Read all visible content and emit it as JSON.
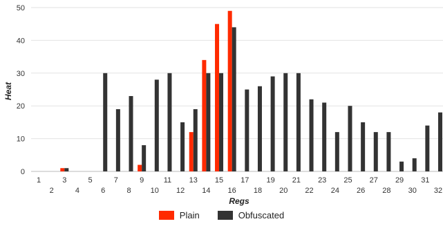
{
  "chart_data": {
    "type": "bar",
    "xlabel": "Regs",
    "ylabel": "Heat",
    "ylim": [
      0,
      50
    ],
    "yticks": [
      0,
      10,
      20,
      30,
      40,
      50
    ],
    "grid": true,
    "legend_position": "bottom",
    "categories": [
      "1",
      "2",
      "3",
      "4",
      "5",
      "6",
      "7",
      "8",
      "9",
      "10",
      "11",
      "12",
      "13",
      "14",
      "15",
      "16",
      "17",
      "18",
      "19",
      "20",
      "21",
      "22",
      "23",
      "24",
      "25",
      "26",
      "27",
      "28",
      "29",
      "30",
      "31",
      "32"
    ],
    "series": [
      {
        "name": "Plain",
        "color": "#ff2a00",
        "values": [
          0,
          0,
          1,
          0,
          0,
          0,
          0,
          0,
          2,
          0,
          0,
          0,
          12,
          34,
          45,
          49,
          0,
          0,
          0,
          0,
          0,
          0,
          0,
          0,
          0,
          0,
          0,
          0,
          0,
          0,
          0,
          0
        ]
      },
      {
        "name": "Obfuscated",
        "color": "#333333",
        "values": [
          0,
          0,
          1,
          0,
          0,
          30,
          19,
          23,
          8,
          28,
          30,
          15,
          19,
          30,
          30,
          44,
          25,
          26,
          29,
          30,
          30,
          22,
          21,
          12,
          20,
          15,
          12,
          12,
          3,
          4,
          14,
          18
        ]
      }
    ]
  }
}
